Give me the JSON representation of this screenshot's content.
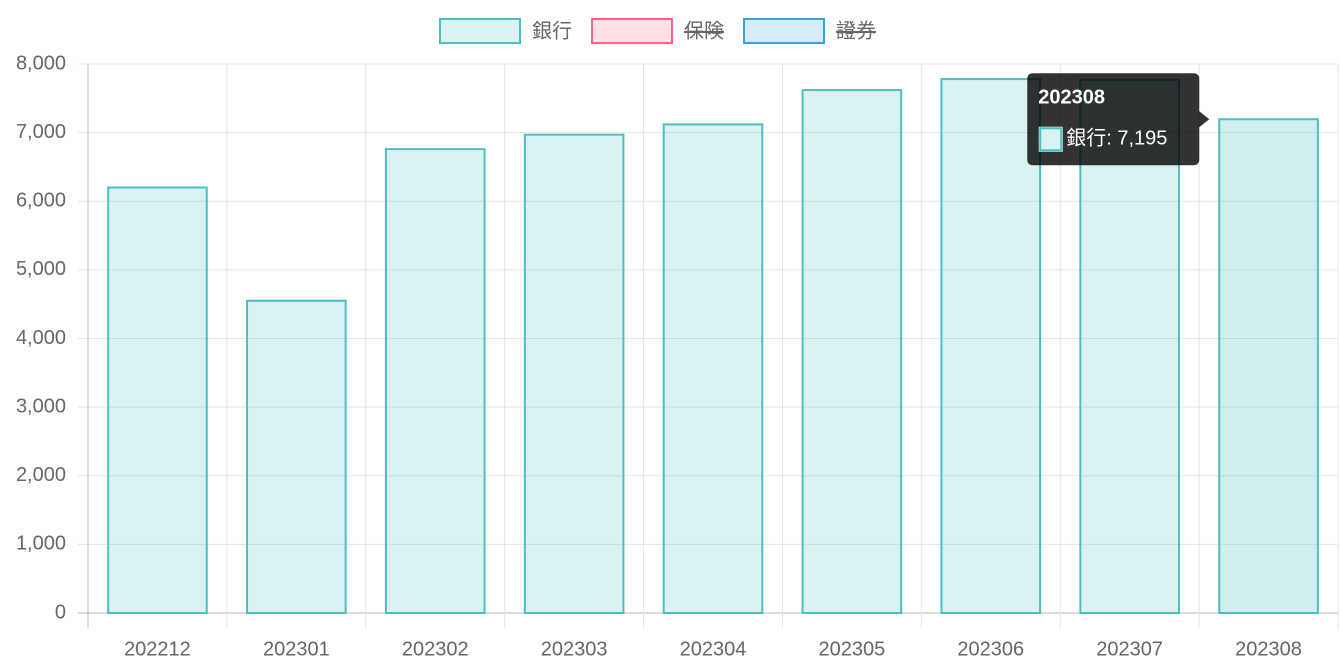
{
  "chart_data": {
    "type": "bar",
    "categories": [
      "202212",
      "202301",
      "202302",
      "202303",
      "202304",
      "202305",
      "202306",
      "202307",
      "202308"
    ],
    "series": [
      {
        "name": "銀行",
        "color": "rgb(75, 192, 192)",
        "fill": "rgba(75, 192, 192, 0.2)",
        "values": [
          6200,
          4550,
          6760,
          6970,
          7120,
          7620,
          7780,
          7770,
          7195
        ]
      },
      {
        "name": "保険",
        "color": "rgb(255, 99, 132)",
        "fill": "rgba(255, 99, 132, 0.2)",
        "hidden": true
      },
      {
        "name": "證券",
        "color": "rgb(54, 162, 235)",
        "fill": "rgba(54, 162, 235, 0.2)",
        "hidden": true
      }
    ],
    "ylim": [
      0,
      8000
    ],
    "yticks": [
      0,
      {
        "value": 1000,
        "label": "1,000"
      },
      {
        "value": 2000,
        "label": "2,000"
      },
      {
        "value": 3000,
        "label": "3,000"
      },
      {
        "value": 4000,
        "label": "4,000"
      },
      {
        "value": 5000,
        "label": "5,000"
      },
      {
        "value": 6000,
        "label": "6,000"
      },
      {
        "value": 7000,
        "label": "7,000"
      },
      {
        "value": 8000,
        "label": "8,000"
      }
    ],
    "grid": true,
    "legend": "top",
    "tooltip": {
      "index": 8,
      "series": 0,
      "title": "202308",
      "label": "銀行: 7,195"
    }
  }
}
